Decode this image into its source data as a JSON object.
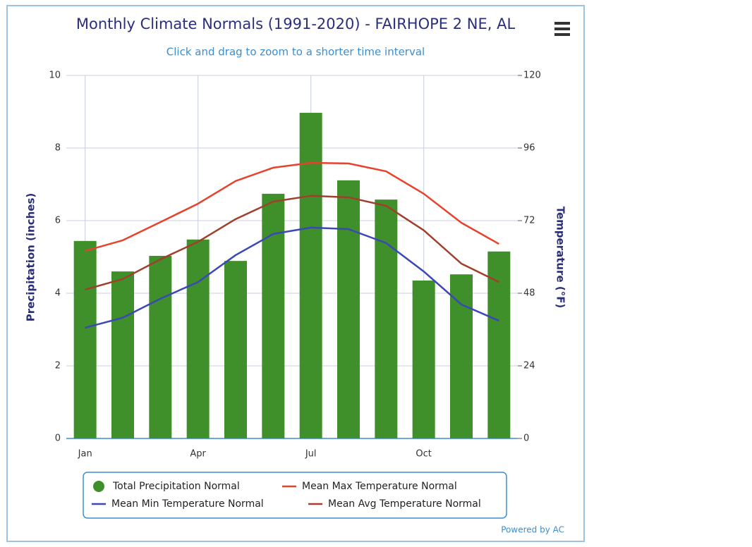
{
  "chart_data": {
    "type": "bar",
    "title": "Monthly Climate Normals (1991-2020) - FAIRHOPE 2 NE, AL",
    "subtitle": "Click and drag to zoom to a shorter time interval",
    "credit": "Powered by AC",
    "ylabel": "Precipitation (inches)",
    "y2label": "Temperature (°F)",
    "categories": [
      "Jan",
      null,
      null,
      "Apr",
      null,
      null,
      "Jul",
      null,
      null,
      "Oct",
      null,
      null
    ],
    "ylim": [
      0,
      10
    ],
    "yticks": [
      0,
      2,
      4,
      6,
      8,
      10
    ],
    "y2lim": [
      0,
      120
    ],
    "y2ticks": [
      0,
      24,
      48,
      72,
      96,
      120
    ],
    "grid": true,
    "series": [
      {
        "name": "Total Precipitation Normal",
        "type": "bar",
        "color": "#3f8f2a",
        "values": [
          5.44,
          4.6,
          5.03,
          5.48,
          4.89,
          6.74,
          8.97,
          7.11,
          6.58,
          4.35,
          4.52,
          5.15
        ]
      },
      {
        "name": "Mean Max Temperature Normal",
        "type": "line",
        "axis": "y2",
        "color": "#e8412c",
        "values": [
          62.0,
          65.5,
          71.5,
          77.6,
          85.1,
          89.5,
          91.1,
          90.9,
          88.3,
          80.9,
          71.3,
          64.3
        ]
      },
      {
        "name": "Mean Min Temperature Normal",
        "type": "line",
        "axis": "y2",
        "color": "#3b48b5",
        "values": [
          36.6,
          39.9,
          46.2,
          51.7,
          60.6,
          67.6,
          69.7,
          69.2,
          64.6,
          55.2,
          44.3,
          38.9
        ]
      },
      {
        "name": "Mean Avg Temperature Normal",
        "type": "line",
        "axis": "y2",
        "color": "#a0402c",
        "values": [
          49.2,
          52.7,
          59.2,
          65.0,
          72.5,
          78.3,
          80.2,
          79.7,
          76.9,
          68.8,
          57.8,
          51.7
        ]
      }
    ]
  }
}
